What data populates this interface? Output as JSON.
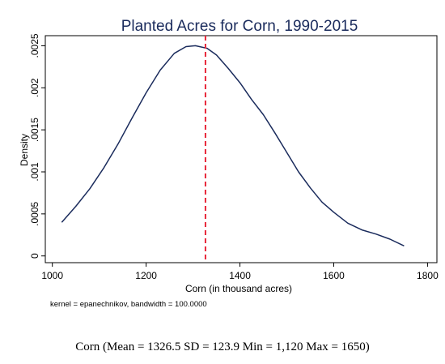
{
  "chart_data": {
    "type": "line",
    "title": "Planted Acres for Corn, 1990-2015",
    "xlabel": "Corn (in thousand acres)",
    "ylabel": "Density",
    "note": "kernel = epanechnikov, bandwidth = 100.0000",
    "xlim": [
      985,
      1820
    ],
    "ylim": [
      -8e-05,
      0.00262
    ],
    "x_ticks": [
      1000,
      1200,
      1400,
      1600,
      1800
    ],
    "y_ticks": [
      0,
      0.0005,
      0.001,
      0.0015,
      0.002,
      0.0025
    ],
    "y_tick_labels": [
      "0",
      ".0005",
      ".001",
      ".0015",
      ".002",
      ".0025"
    ],
    "grid": false,
    "series": [
      {
        "x": [
          1020,
          1050,
          1080,
          1110,
          1140,
          1170,
          1200,
          1230,
          1260,
          1285,
          1305,
          1330,
          1350,
          1375,
          1400,
          1425,
          1450,
          1475,
          1500,
          1525,
          1550,
          1575,
          1600,
          1630,
          1660,
          1690,
          1720,
          1750
        ],
        "y": [
          0.0004,
          0.00059,
          0.0008,
          0.00105,
          0.00133,
          0.00164,
          0.00194,
          0.00221,
          0.00241,
          0.00249,
          0.0025,
          0.00247,
          0.00239,
          0.00223,
          0.00206,
          0.00186,
          0.00168,
          0.00146,
          0.00123,
          0.001,
          0.00081,
          0.00064,
          0.00052,
          0.00039,
          0.00031,
          0.00026,
          0.0002,
          0.00012
        ]
      }
    ],
    "mean_line": {
      "x": 1326.5,
      "color": "#e8273a"
    },
    "colors": {
      "line": "#1a2b5c",
      "frame": "#000000",
      "background": "#ffffff"
    }
  },
  "caption": "Corn (Mean = 1326.5 SD = 123.9 Min = 1,120 Max = 1650)"
}
